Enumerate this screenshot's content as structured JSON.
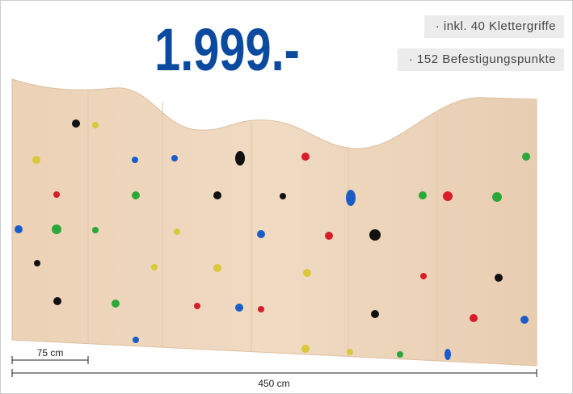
{
  "price": "1.999.-",
  "features": [
    "· inkl. 40 Klettergriffe",
    "· 152 Befestigungspunkte"
  ],
  "dimensions": {
    "segment": "75 cm",
    "total": "450 cm"
  }
}
